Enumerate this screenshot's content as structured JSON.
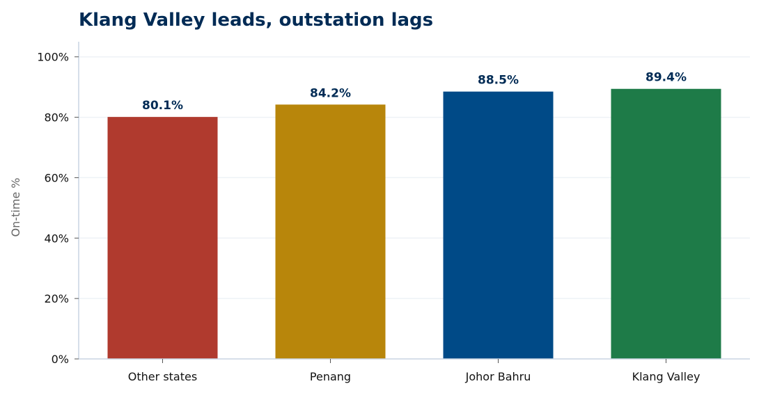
{
  "chart_data": {
    "type": "bar",
    "title": "Klang Valley leads, outstation lags",
    "xlabel": "",
    "ylabel": "On-time %",
    "ylim": [
      0,
      105
    ],
    "yticks": [
      0,
      20,
      40,
      60,
      80,
      100
    ],
    "ytick_labels": [
      "0%",
      "20%",
      "40%",
      "60%",
      "80%",
      "100%"
    ],
    "categories": [
      "Other states",
      "Penang",
      "Johor Bahru",
      "Klang Valley"
    ],
    "values": [
      80.1,
      84.2,
      88.5,
      89.4
    ],
    "data_labels": [
      "80.1%",
      "84.2%",
      "88.5%",
      "89.4%"
    ],
    "colors": [
      "#b03a2e",
      "#b8860b",
      "#004a87",
      "#1e7b48"
    ],
    "title_color": "#002b55",
    "label_color": "#002b55",
    "grid": true,
    "legend": "none"
  }
}
